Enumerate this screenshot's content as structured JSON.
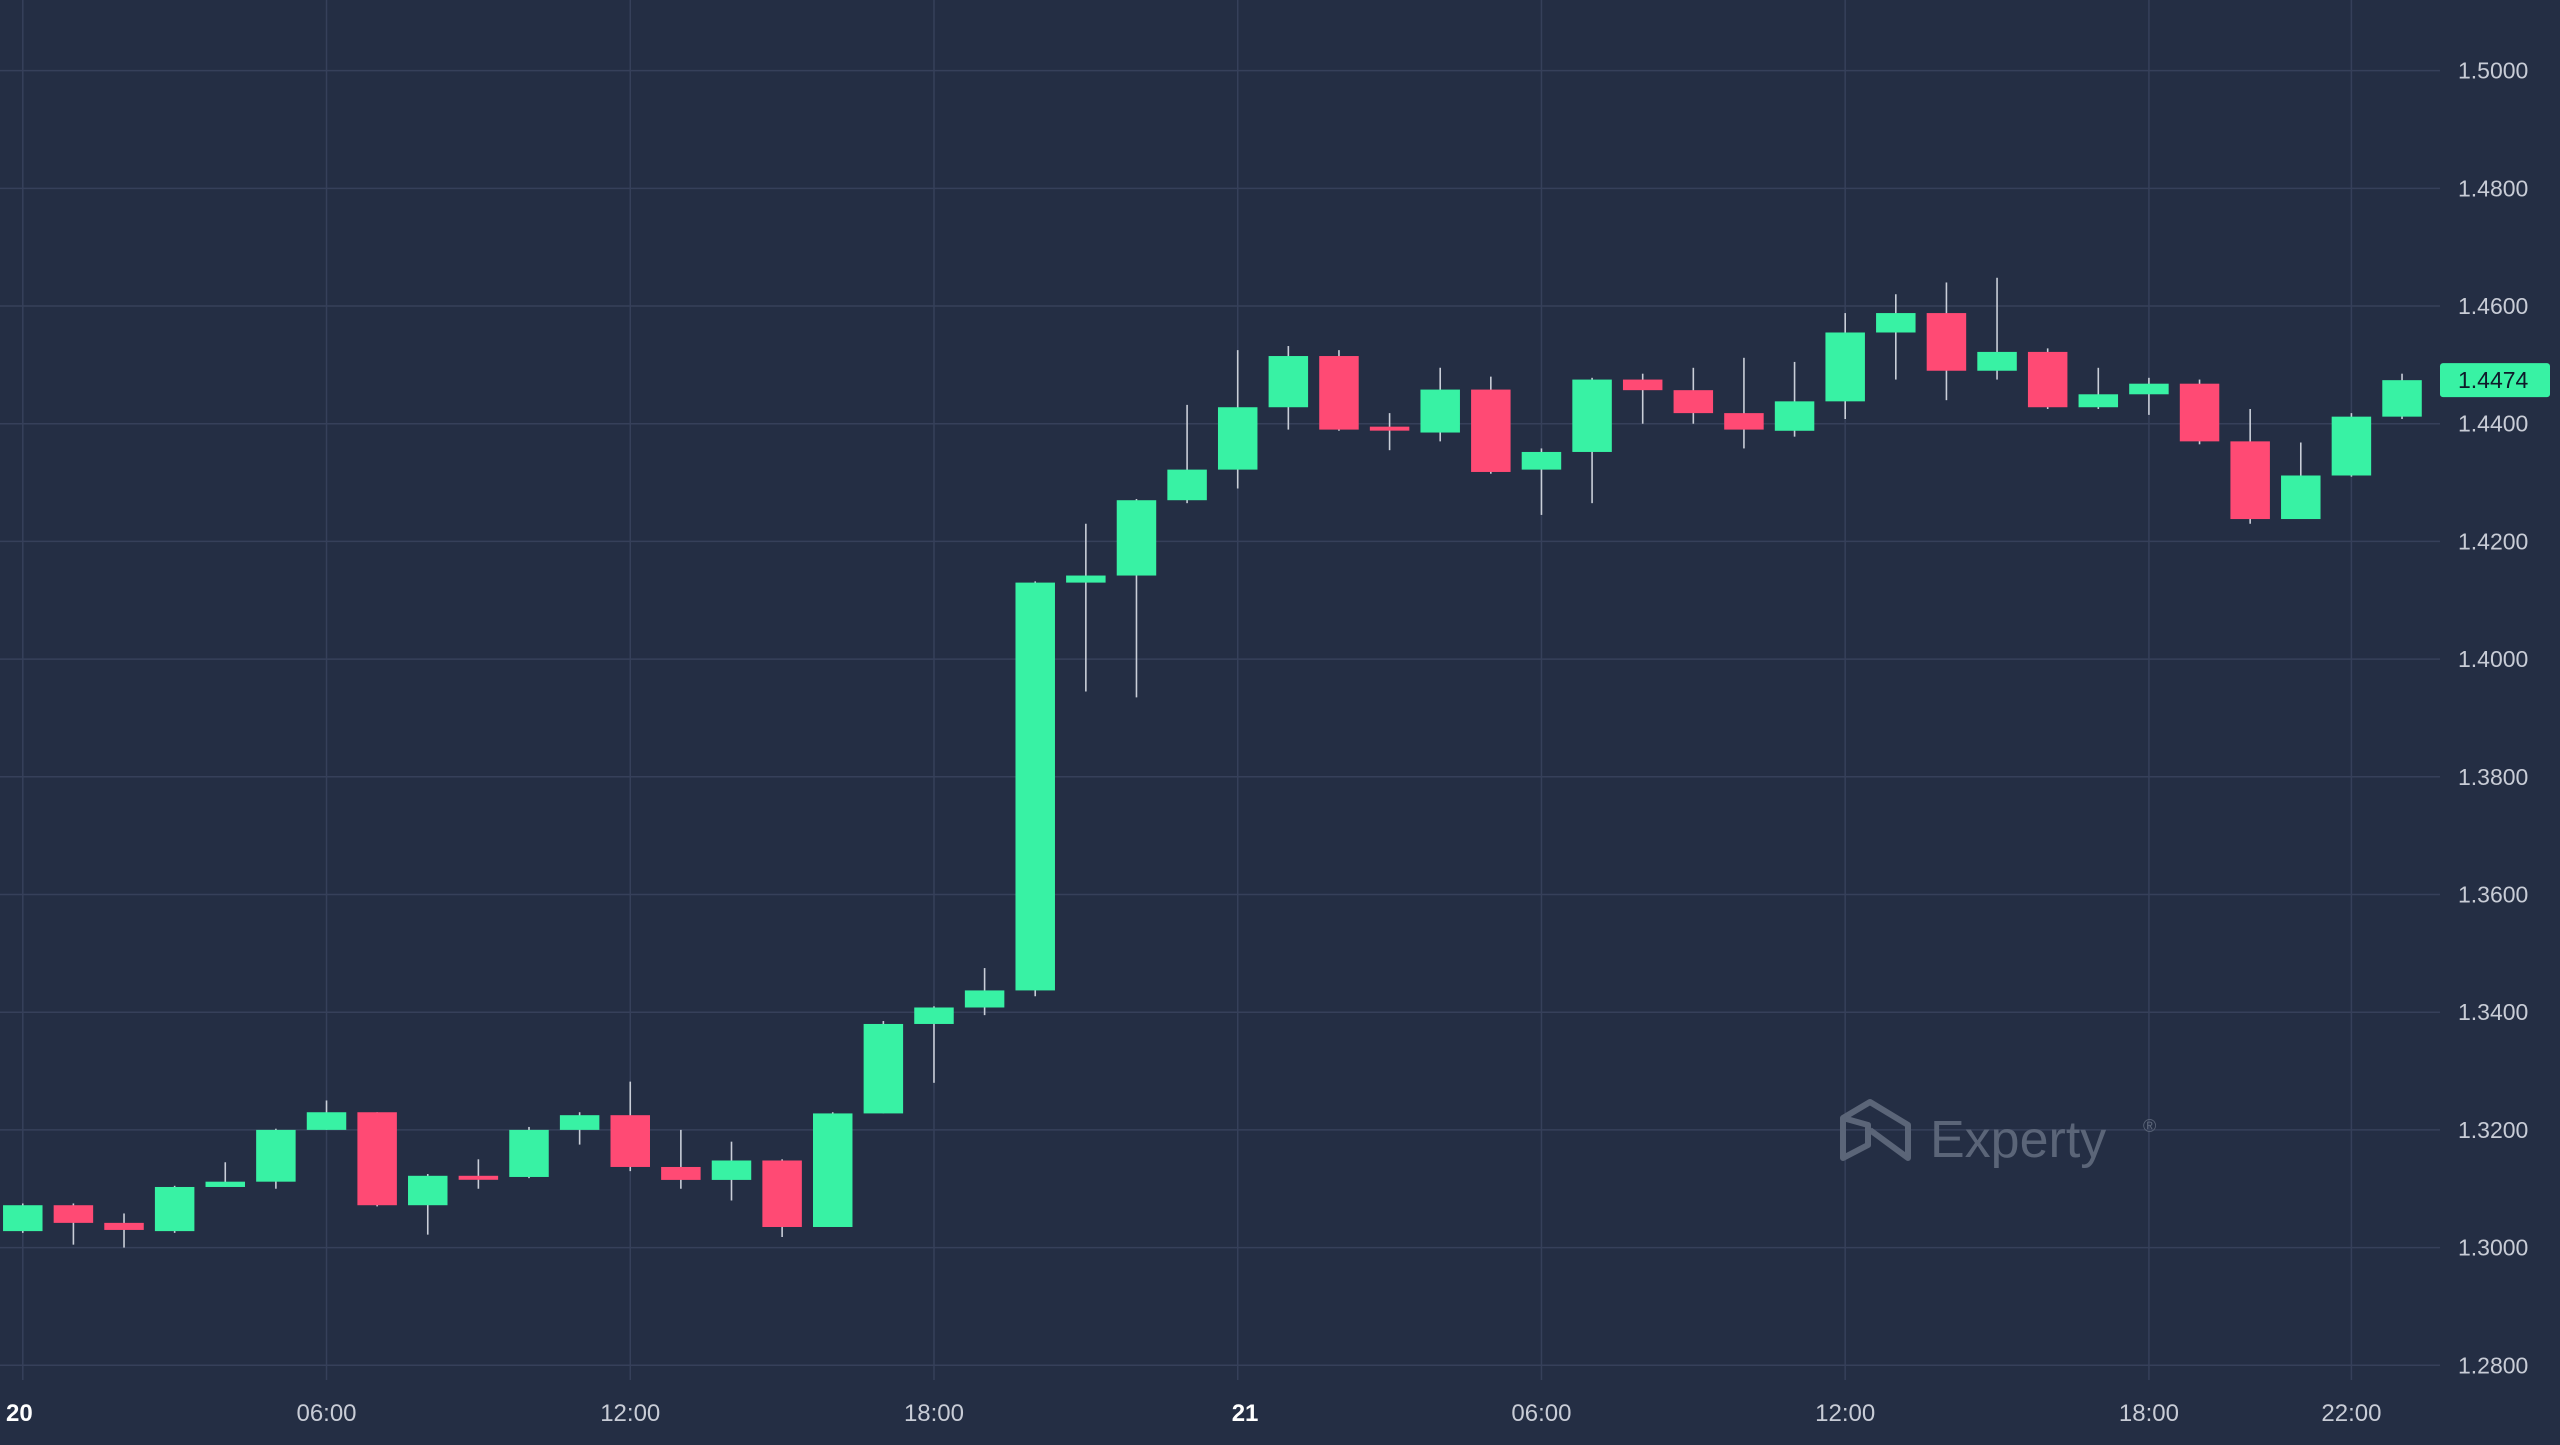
{
  "colors": {
    "background": "#242e44",
    "grid": "#36405a",
    "up": "#38f2a4",
    "down": "#ff4a74",
    "axis_text": "#c8ccd6",
    "watermark": "#5b6578"
  },
  "watermark": {
    "text": "Experty",
    "mark": "®",
    "icon": "experty-logo-icon"
  },
  "last_price": {
    "label": "1.4474",
    "value": 1.4474
  },
  "chart_data": {
    "type": "candlestick",
    "title": "",
    "ylim": [
      1.2775,
      1.512
    ],
    "yticks": [
      "1.2800",
      "1.3000",
      "1.3200",
      "1.3400",
      "1.3600",
      "1.3800",
      "1.4000",
      "1.4200",
      "1.4400",
      "1.4600",
      "1.4800",
      "1.5000"
    ],
    "xticks": [
      {
        "label": "20",
        "major": true,
        "at": 0
      },
      {
        "label": "06:00",
        "major": false,
        "at": 6
      },
      {
        "label": "12:00",
        "major": false,
        "at": 12
      },
      {
        "label": "18:00",
        "major": false,
        "at": 18
      },
      {
        "label": "21",
        "major": true,
        "at": 24
      },
      {
        "label": "06:00",
        "major": false,
        "at": 30
      },
      {
        "label": "12:00",
        "major": false,
        "at": 36
      },
      {
        "label": "18:00",
        "major": false,
        "at": 42
      },
      {
        "label": "22:00",
        "major": false,
        "at": 46
      }
    ],
    "x_range": [
      -0.45,
      47.75
    ],
    "grid": true,
    "candles": [
      {
        "t": 0,
        "o": 1.3028,
        "h": 1.3075,
        "l": 1.3025,
        "c": 1.3072
      },
      {
        "t": 1,
        "o": 1.3072,
        "h": 1.3075,
        "l": 1.3005,
        "c": 1.3042
      },
      {
        "t": 2,
        "o": 1.3042,
        "h": 1.3058,
        "l": 1.3,
        "c": 1.303
      },
      {
        "t": 3,
        "o": 1.3028,
        "h": 1.3105,
        "l": 1.3025,
        "c": 1.3103
      },
      {
        "t": 4,
        "o": 1.3103,
        "h": 1.3145,
        "l": 1.3103,
        "c": 1.3112
      },
      {
        "t": 5,
        "o": 1.3112,
        "h": 1.3202,
        "l": 1.31,
        "c": 1.32
      },
      {
        "t": 6,
        "o": 1.32,
        "h": 1.325,
        "l": 1.32,
        "c": 1.323
      },
      {
        "t": 7,
        "o": 1.323,
        "h": 1.323,
        "l": 1.307,
        "c": 1.3072
      },
      {
        "t": 8,
        "o": 1.3072,
        "h": 1.3125,
        "l": 1.3022,
        "c": 1.3122
      },
      {
        "t": 9,
        "o": 1.3122,
        "h": 1.315,
        "l": 1.31,
        "c": 1.312
      },
      {
        "t": 10,
        "o": 1.312,
        "h": 1.3205,
        "l": 1.3118,
        "c": 1.32
      },
      {
        "t": 11,
        "o": 1.32,
        "h": 1.323,
        "l": 1.3175,
        "c": 1.3225
      },
      {
        "t": 12,
        "o": 1.3225,
        "h": 1.3282,
        "l": 1.313,
        "c": 1.3137
      },
      {
        "t": 13,
        "o": 1.3137,
        "h": 1.32,
        "l": 1.31,
        "c": 1.3115
      },
      {
        "t": 14,
        "o": 1.3115,
        "h": 1.318,
        "l": 1.308,
        "c": 1.3148
      },
      {
        "t": 15,
        "o": 1.3148,
        "h": 1.315,
        "l": 1.3018,
        "c": 1.3035
      },
      {
        "t": 16,
        "o": 1.3035,
        "h": 1.323,
        "l": 1.3035,
        "c": 1.3228
      },
      {
        "t": 17,
        "o": 1.3228,
        "h": 1.3385,
        "l": 1.3228,
        "c": 1.338
      },
      {
        "t": 18,
        "o": 1.338,
        "h": 1.341,
        "l": 1.328,
        "c": 1.3408
      },
      {
        "t": 19,
        "o": 1.3408,
        "h": 1.3475,
        "l": 1.3395,
        "c": 1.3437
      },
      {
        "t": 20,
        "o": 1.3437,
        "h": 1.4132,
        "l": 1.3427,
        "c": 1.413
      },
      {
        "t": 21,
        "o": 1.413,
        "h": 1.423,
        "l": 1.3945,
        "c": 1.4142
      },
      {
        "t": 22,
        "o": 1.4142,
        "h": 1.4272,
        "l": 1.3935,
        "c": 1.427
      },
      {
        "t": 23,
        "o": 1.427,
        "h": 1.4432,
        "l": 1.4265,
        "c": 1.4322
      },
      {
        "t": 24,
        "o": 1.4322,
        "h": 1.4525,
        "l": 1.429,
        "c": 1.4428
      },
      {
        "t": 25,
        "o": 1.4428,
        "h": 1.4532,
        "l": 1.439,
        "c": 1.4515
      },
      {
        "t": 26,
        "o": 1.4515,
        "h": 1.4525,
        "l": 1.4388,
        "c": 1.439
      },
      {
        "t": 27,
        "o": 1.4395,
        "h": 1.4418,
        "l": 1.4355,
        "c": 1.439
      },
      {
        "t": 28,
        "o": 1.4385,
        "h": 1.4495,
        "l": 1.437,
        "c": 1.4458
      },
      {
        "t": 29,
        "o": 1.4458,
        "h": 1.448,
        "l": 1.4315,
        "c": 1.4318
      },
      {
        "t": 30,
        "o": 1.4322,
        "h": 1.4358,
        "l": 1.4245,
        "c": 1.4352
      },
      {
        "t": 31,
        "o": 1.4352,
        "h": 1.4478,
        "l": 1.4265,
        "c": 1.4475
      },
      {
        "t": 32,
        "o": 1.4475,
        "h": 1.4485,
        "l": 1.44,
        "c": 1.4457
      },
      {
        "t": 33,
        "o": 1.4457,
        "h": 1.4495,
        "l": 1.44,
        "c": 1.4418
      },
      {
        "t": 34,
        "o": 1.4418,
        "h": 1.4512,
        "l": 1.4358,
        "c": 1.439
      },
      {
        "t": 35,
        "o": 1.4388,
        "h": 1.4505,
        "l": 1.4378,
        "c": 1.4438
      },
      {
        "t": 36,
        "o": 1.4438,
        "h": 1.4588,
        "l": 1.4408,
        "c": 1.4555
      },
      {
        "t": 37,
        "o": 1.4555,
        "h": 1.462,
        "l": 1.4475,
        "c": 1.4588
      },
      {
        "t": 38,
        "o": 1.4588,
        "h": 1.464,
        "l": 1.444,
        "c": 1.449
      },
      {
        "t": 39,
        "o": 1.449,
        "h": 1.4648,
        "l": 1.4475,
        "c": 1.4522
      },
      {
        "t": 40,
        "o": 1.4522,
        "h": 1.4528,
        "l": 1.4425,
        "c": 1.4428
      },
      {
        "t": 41,
        "o": 1.4428,
        "h": 1.4495,
        "l": 1.4425,
        "c": 1.445
      },
      {
        "t": 42,
        "o": 1.445,
        "h": 1.4478,
        "l": 1.4415,
        "c": 1.4468
      },
      {
        "t": 43,
        "o": 1.4468,
        "h": 1.4475,
        "l": 1.4365,
        "c": 1.437
      },
      {
        "t": 44,
        "o": 1.437,
        "h": 1.4425,
        "l": 1.423,
        "c": 1.4238
      },
      {
        "t": 45,
        "o": 1.4238,
        "h": 1.4368,
        "l": 1.4238,
        "c": 1.4312
      },
      {
        "t": 46,
        "o": 1.4312,
        "h": 1.4418,
        "l": 1.431,
        "c": 1.4412
      },
      {
        "t": 47,
        "o": 1.4412,
        "h": 1.4485,
        "l": 1.4408,
        "c": 1.4474
      }
    ]
  }
}
